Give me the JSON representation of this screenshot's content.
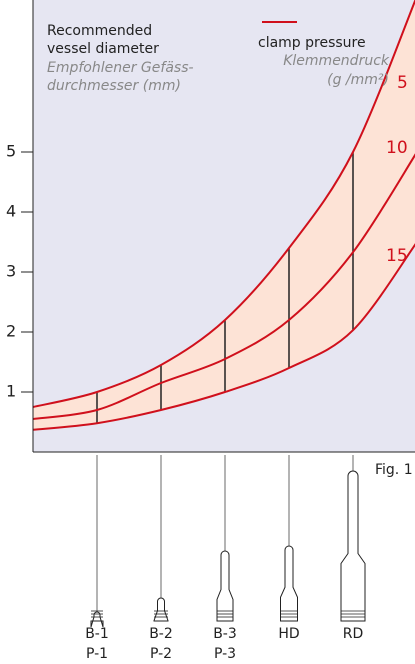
{
  "chart_data": {
    "type": "line",
    "y_label": [
      "Recommended",
      "vessel diameter"
    ],
    "y_label_translation": [
      "Empfohlener Gefäss-",
      "durchmesser (mm)"
    ],
    "legend_title": "clamp pressure",
    "legend_title_translation": [
      "Klemmendruck",
      "(g /mm²)"
    ],
    "annotation": "Fig. 1",
    "categories": [
      null,
      "B-1",
      "B-2",
      "B-3",
      "HD",
      "RD",
      null
    ],
    "category_sublabels": [
      null,
      "P-1",
      "P-2",
      "P-3",
      null,
      null,
      null
    ],
    "series": [
      {
        "name": "5",
        "color": "#d0101c",
        "values": [
          0.75,
          1.0,
          1.45,
          2.2,
          3.4,
          5.0,
          7.6
        ]
      },
      {
        "name": "10",
        "color": "#d0101c",
        "values": [
          0.55,
          0.7,
          1.15,
          1.55,
          2.2,
          3.33,
          5.0
        ]
      },
      {
        "name": "15",
        "color": "#d0101c",
        "values": [
          0.37,
          0.48,
          0.7,
          1.0,
          1.4,
          2.03,
          3.5
        ]
      }
    ],
    "band_color": "#fde3d6",
    "background": "#e6e6f2",
    "ylim": [
      0,
      7.5
    ],
    "yticks": [
      1,
      2,
      3,
      4,
      5
    ]
  }
}
